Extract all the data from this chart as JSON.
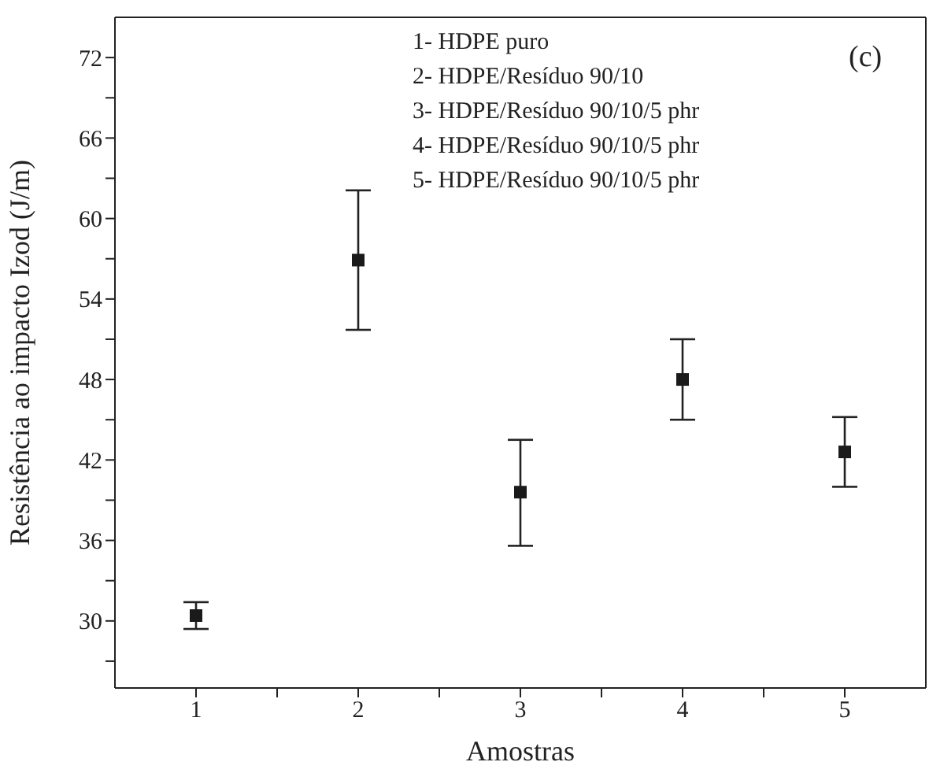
{
  "chart_data": {
    "type": "scatter",
    "xlabel": "Amostras",
    "ylabel": "Resistência ao impacto Izod (J/m)",
    "x": [
      1,
      2,
      3,
      4,
      5
    ],
    "series": [
      {
        "color": "#1a1a1a",
        "values": [
          30.4,
          56.9,
          39.6,
          48.0,
          42.6
        ],
        "errors": [
          [
            29.4,
            31.4
          ],
          [
            51.7,
            62.1
          ],
          [
            35.6,
            43.5
          ],
          [
            45.0,
            51.0
          ],
          [
            40.0,
            45.2
          ]
        ]
      }
    ],
    "xlim": [
      0.5,
      5.5
    ],
    "xticks": [
      1,
      2,
      3,
      4,
      5,
      {
        "value": 1.5,
        "label": null
      },
      {
        "value": 2.5,
        "label": null
      },
      {
        "value": 3.5,
        "label": null
      },
      {
        "value": 4.5,
        "label": null
      }
    ],
    "ylim": [
      25,
      75
    ],
    "yticks": [
      30,
      36,
      42,
      48,
      54,
      60,
      66,
      72,
      {
        "value": 27,
        "label": null
      },
      {
        "value": 33,
        "label": null
      },
      {
        "value": 39,
        "label": null
      },
      {
        "value": 45,
        "label": null
      },
      {
        "value": 51,
        "label": null
      },
      {
        "value": 57,
        "label": null
      },
      {
        "value": 63,
        "label": null
      },
      {
        "value": 69,
        "label": null
      }
    ],
    "marker": "square",
    "legend": false,
    "annotations": [
      "(c)",
      "1- HDPE puro",
      "2- HDPE/Resíduo 90/10",
      "3- HDPE/Resíduo 90/10/5 phr",
      "4- HDPE/Resíduo 90/10/5 phr",
      "5- HDPE/Resíduo 90/10/5 phr"
    ]
  }
}
